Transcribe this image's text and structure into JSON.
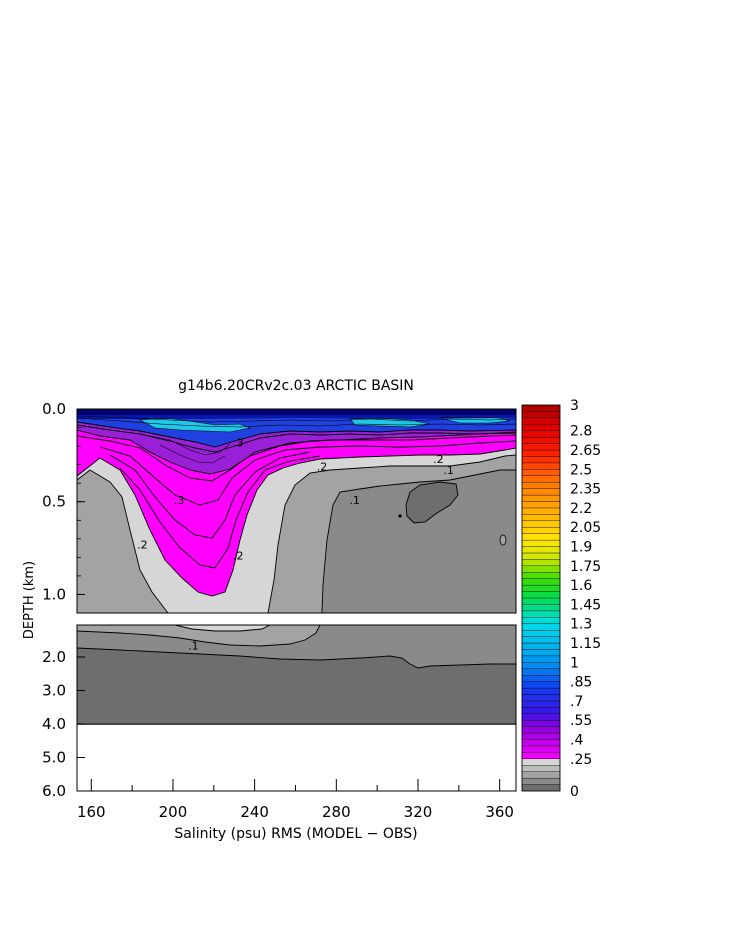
{
  "chart_data": {
    "type": "heatmap",
    "title": "g14b6.20CRv2c.03 ARCTIC BASIN",
    "xlabel": "Salinity (psu) RMS (MODEL − OBS)",
    "ylabel": "DEPTH (km)",
    "x_ticks": [
      "160",
      "200",
      "240",
      "280",
      "320",
      "360"
    ],
    "x_tick_values": [
      160,
      200,
      240,
      280,
      320,
      360
    ],
    "xlim": [
      153,
      368
    ],
    "upper_panel": {
      "ylim": [
        0.0,
        1.1
      ],
      "y_ticks": [
        "0.0",
        "0.5",
        "1.0"
      ],
      "y_tick_values": [
        0.0,
        0.5,
        1.0
      ]
    },
    "lower_panel": {
      "ylim": [
        1.3,
        6.0
      ],
      "y_ticks": [
        "2.0",
        "3.0",
        "4.0",
        "5.0",
        "6.0"
      ],
      "y_tick_values": [
        2.0,
        3.0,
        4.0,
        5.0,
        6.0
      ],
      "data_bottom_depth": 4.0
    },
    "contour_labels": [
      {
        "text": ".3",
        "x": 232,
        "y": 0.18
      },
      {
        "text": ".3",
        "x": 203,
        "y": 0.49
      },
      {
        "text": ".2",
        "x": 273,
        "y": 0.31
      },
      {
        "text": ".2",
        "x": 330,
        "y": 0.27
      },
      {
        "text": ".2",
        "x": 185,
        "y": 0.73
      },
      {
        "text": ".2",
        "x": 232,
        "y": 0.79
      },
      {
        "text": ".1",
        "x": 335,
        "y": 0.33
      },
      {
        "text": ".1",
        "x": 289,
        "y": 0.49
      },
      {
        "text": ".1",
        "x": 210,
        "y": 1.65
      }
    ],
    "colorbar": {
      "min": 0,
      "max": 3,
      "step": 0.05,
      "labels": [
        "3",
        "2.8",
        "2.65",
        "2.5",
        "2.35",
        "2.2",
        "2.05",
        "1.9",
        "1.75",
        "1.6",
        "1.45",
        "1.3",
        "1.15",
        "1",
        ".85",
        ".7",
        ".55",
        ".4",
        ".25",
        "0"
      ],
      "label_values": [
        3,
        2.8,
        2.65,
        2.5,
        2.35,
        2.2,
        2.05,
        1.9,
        1.75,
        1.6,
        1.45,
        1.3,
        1.15,
        1,
        0.85,
        0.7,
        0.55,
        0.4,
        0.25,
        0
      ],
      "gray_levels": [
        {
          "min": 0,
          "max": 0.05,
          "color": "#6e6e6e"
        },
        {
          "min": 0.05,
          "max": 0.1,
          "color": "#8a8a8a"
        },
        {
          "min": 0.1,
          "max": 0.15,
          "color": "#a3a3a3"
        },
        {
          "min": 0.15,
          "max": 0.2,
          "color": "#bdbdbd"
        },
        {
          "min": 0.2,
          "max": 0.25,
          "color": "#d6d6d6"
        }
      ]
    },
    "colors": {
      "level_0_05": "#6e6e6e",
      "level_05_10": "#8a8a8a",
      "level_10_20": "#a3a3a3",
      "level_20_25": "#d6d6d6",
      "magenta": "#ff00ff",
      "violet": "#9a20d8",
      "blue": "#2040e0",
      "cyan": "#20c8e8",
      "navy": "#000070"
    }
  }
}
